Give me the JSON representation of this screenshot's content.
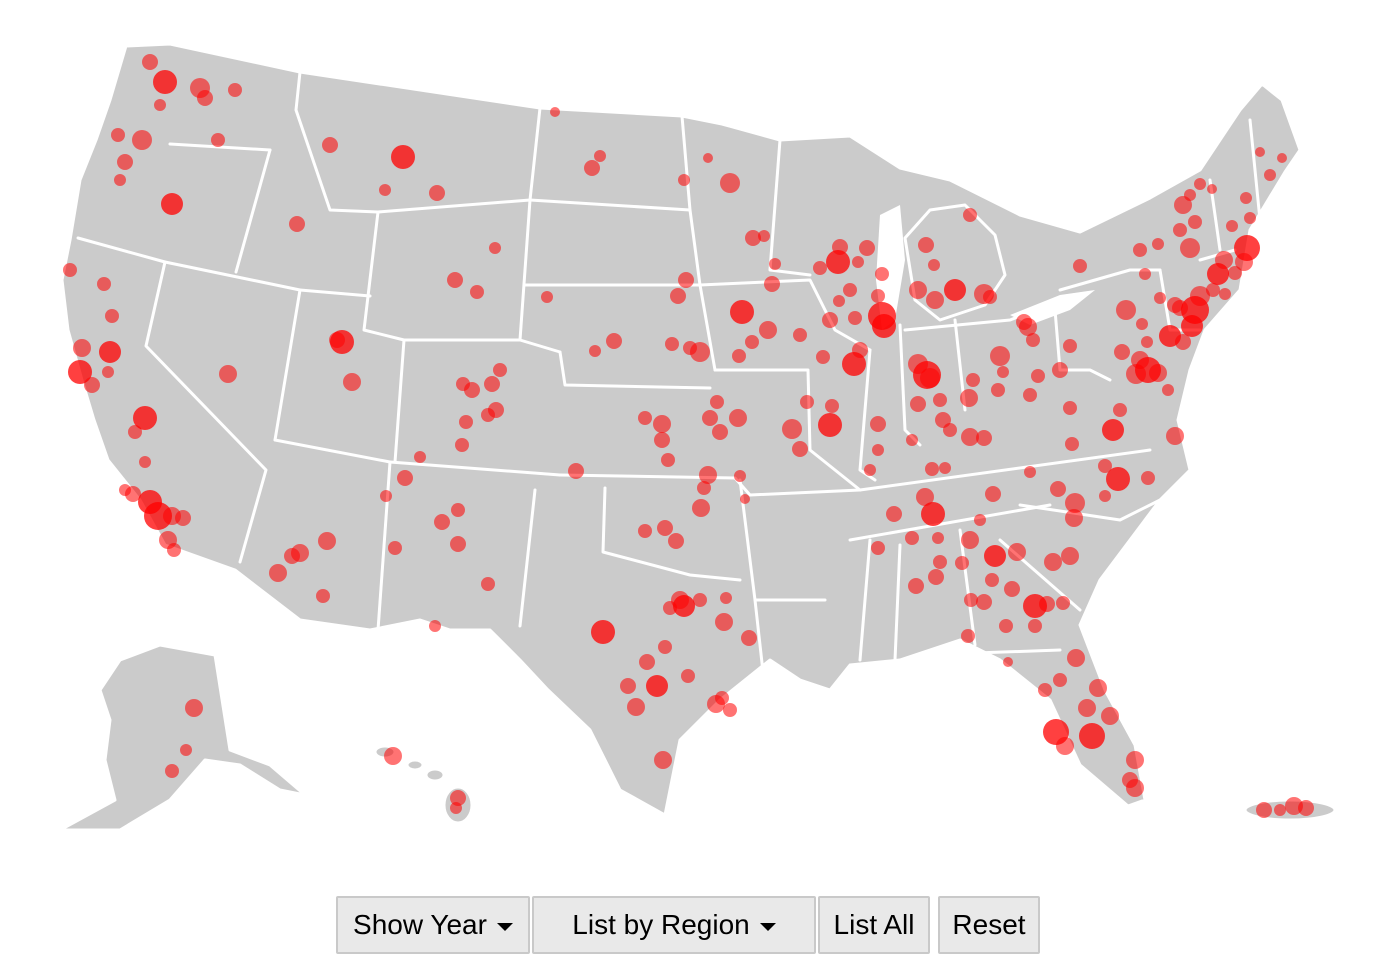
{
  "map": {
    "land_color": "#cbcbcb",
    "border_color": "#ffffff",
    "marker_color": "#ff0000",
    "marker_style": "semi-transparent circles sized by count"
  },
  "controls": {
    "show_year_label": "Show Year",
    "list_by_region_label": "List by Region",
    "list_all_label": "List All",
    "reset_label": "Reset"
  }
}
